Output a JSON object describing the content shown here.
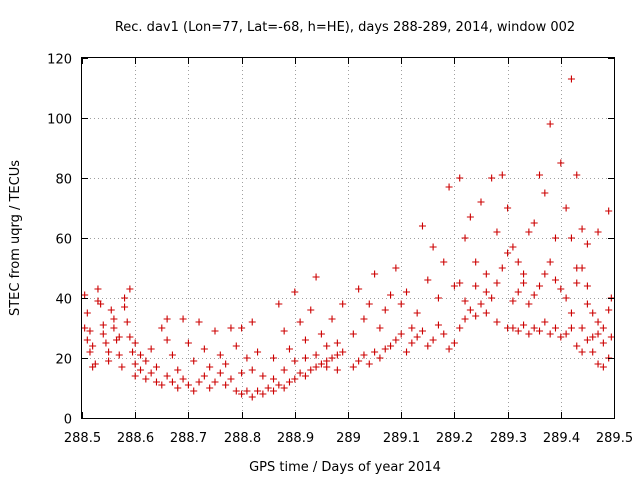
{
  "chart_data": {
    "type": "scatter",
    "title": "Rec. dav1 (Lon=77, Lat=-68, h=HE), days 288-289, 2014, window 002",
    "xlabel": "GPS time / Days of year 2014",
    "ylabel": "STEC from uqrg / TECUs",
    "xlim": [
      288.5,
      289.5
    ],
    "ylim": [
      0,
      120
    ],
    "xticks": [
      288.5,
      288.6,
      288.7,
      288.8,
      288.9,
      289,
      289.1,
      289.2,
      289.3,
      289.4,
      289.5
    ],
    "xtick_labels": [
      "288.5",
      "288.6",
      "288.7",
      "288.8",
      "288.9",
      "289",
      "289.1",
      "289.2",
      "289.3",
      "289.4",
      "289.5"
    ],
    "yticks": [
      0,
      20,
      40,
      60,
      80,
      100,
      120
    ],
    "ytick_labels": [
      "0",
      "20",
      "40",
      "60",
      "80",
      "100",
      "120"
    ],
    "grid": true,
    "marker": "plus",
    "color": "#cc0000",
    "series": [
      {
        "name": "STEC",
        "points": [
          [
            288.505,
            41
          ],
          [
            288.51,
            35
          ],
          [
            288.515,
            29
          ],
          [
            288.52,
            24
          ],
          [
            288.525,
            18
          ],
          [
            288.53,
            43
          ],
          [
            288.535,
            38
          ],
          [
            288.54,
            31
          ],
          [
            288.545,
            25
          ],
          [
            288.55,
            19
          ],
          [
            288.555,
            36
          ],
          [
            288.56,
            30
          ],
          [
            288.565,
            26
          ],
          [
            288.57,
            21
          ],
          [
            288.575,
            17
          ],
          [
            288.58,
            37
          ],
          [
            288.585,
            32
          ],
          [
            288.59,
            27
          ],
          [
            288.595,
            22
          ],
          [
            288.6,
            18
          ],
          [
            288.505,
            30
          ],
          [
            288.51,
            26
          ],
          [
            288.515,
            22
          ],
          [
            288.52,
            17
          ],
          [
            288.53,
            39
          ],
          [
            288.54,
            28
          ],
          [
            288.55,
            22
          ],
          [
            288.56,
            33
          ],
          [
            288.57,
            27
          ],
          [
            288.58,
            40
          ],
          [
            288.59,
            43
          ],
          [
            288.6,
            25
          ],
          [
            288.61,
            21
          ],
          [
            288.62,
            19
          ],
          [
            288.63,
            23
          ],
          [
            288.64,
            17
          ],
          [
            288.65,
            30
          ],
          [
            288.66,
            26
          ],
          [
            288.67,
            21
          ],
          [
            288.68,
            16
          ],
          [
            288.6,
            14
          ],
          [
            288.61,
            16
          ],
          [
            288.62,
            13
          ],
          [
            288.63,
            15
          ],
          [
            288.64,
            12
          ],
          [
            288.65,
            11
          ],
          [
            288.66,
            14
          ],
          [
            288.67,
            12
          ],
          [
            288.68,
            10
          ],
          [
            288.69,
            13
          ],
          [
            288.7,
            11
          ],
          [
            288.71,
            9
          ],
          [
            288.72,
            12
          ],
          [
            288.73,
            14
          ],
          [
            288.74,
            10
          ],
          [
            288.75,
            12
          ],
          [
            288.76,
            15
          ],
          [
            288.77,
            11
          ],
          [
            288.78,
            13
          ],
          [
            288.79,
            9
          ],
          [
            288.66,
            33
          ],
          [
            288.69,
            33
          ],
          [
            288.72,
            32
          ],
          [
            288.75,
            29
          ],
          [
            288.78,
            30
          ],
          [
            288.8,
            30
          ],
          [
            288.82,
            32
          ],
          [
            288.7,
            25
          ],
          [
            288.73,
            23
          ],
          [
            288.76,
            21
          ],
          [
            288.79,
            24
          ],
          [
            288.81,
            20
          ],
          [
            288.83,
            22
          ],
          [
            288.71,
            19
          ],
          [
            288.74,
            17
          ],
          [
            288.77,
            18
          ],
          [
            288.8,
            15
          ],
          [
            288.82,
            16
          ],
          [
            288.84,
            14
          ],
          [
            288.86,
            13
          ],
          [
            288.8,
            8
          ],
          [
            288.81,
            9
          ],
          [
            288.82,
            7
          ],
          [
            288.83,
            9
          ],
          [
            288.84,
            8
          ],
          [
            288.85,
            10
          ],
          [
            288.86,
            9
          ],
          [
            288.87,
            11
          ],
          [
            288.88,
            10
          ],
          [
            288.89,
            12
          ],
          [
            288.9,
            13
          ],
          [
            288.91,
            15
          ],
          [
            288.92,
            14
          ],
          [
            288.93,
            16
          ],
          [
            288.94,
            17
          ],
          [
            288.95,
            18
          ],
          [
            288.96,
            19
          ],
          [
            288.97,
            20
          ],
          [
            288.98,
            21
          ],
          [
            288.99,
            22
          ],
          [
            288.87,
            38
          ],
          [
            288.88,
            29
          ],
          [
            288.89,
            23
          ],
          [
            288.9,
            42
          ],
          [
            288.91,
            32
          ],
          [
            288.92,
            26
          ],
          [
            288.93,
            36
          ],
          [
            288.94,
            47
          ],
          [
            288.95,
            28
          ],
          [
            288.96,
            24
          ],
          [
            288.97,
            33
          ],
          [
            288.98,
            25
          ],
          [
            288.99,
            38
          ],
          [
            288.9,
            19
          ],
          [
            288.92,
            20
          ],
          [
            288.94,
            21
          ],
          [
            288.96,
            17
          ],
          [
            288.98,
            16
          ],
          [
            288.88,
            16
          ],
          [
            288.86,
            20
          ],
          [
            289.01,
            17
          ],
          [
            289.02,
            19
          ],
          [
            289.03,
            21
          ],
          [
            289.04,
            18
          ],
          [
            289.05,
            22
          ],
          [
            289.06,
            20
          ],
          [
            289.07,
            23
          ],
          [
            289.08,
            24
          ],
          [
            289.09,
            26
          ],
          [
            289.1,
            28
          ],
          [
            289.01,
            28
          ],
          [
            289.02,
            43
          ],
          [
            289.03,
            33
          ],
          [
            289.04,
            38
          ],
          [
            289.05,
            48
          ],
          [
            289.06,
            30
          ],
          [
            289.07,
            36
          ],
          [
            289.08,
            41
          ],
          [
            289.09,
            50
          ],
          [
            289.1,
            38
          ],
          [
            289.11,
            42
          ],
          [
            289.12,
            30
          ],
          [
            289.13,
            35
          ],
          [
            289.14,
            64
          ],
          [
            289.15,
            46
          ],
          [
            289.16,
            57
          ],
          [
            289.17,
            40
          ],
          [
            289.18,
            52
          ],
          [
            289.19,
            77
          ],
          [
            289.2,
            44
          ],
          [
            289.11,
            22
          ],
          [
            289.12,
            25
          ],
          [
            289.13,
            27
          ],
          [
            289.14,
            29
          ],
          [
            289.15,
            24
          ],
          [
            289.16,
            26
          ],
          [
            289.17,
            31
          ],
          [
            289.18,
            28
          ],
          [
            289.19,
            23
          ],
          [
            289.2,
            25
          ],
          [
            289.21,
            80
          ],
          [
            289.22,
            60
          ],
          [
            289.23,
            67
          ],
          [
            289.24,
            52
          ],
          [
            289.25,
            72
          ],
          [
            289.26,
            48
          ],
          [
            289.27,
            80
          ],
          [
            289.28,
            62
          ],
          [
            289.29,
            81
          ],
          [
            289.3,
            70
          ],
          [
            289.21,
            30
          ],
          [
            289.22,
            33
          ],
          [
            289.23,
            36
          ],
          [
            289.24,
            34
          ],
          [
            289.25,
            38
          ],
          [
            289.26,
            42
          ],
          [
            289.27,
            40
          ],
          [
            289.28,
            45
          ],
          [
            289.29,
            50
          ],
          [
            289.3,
            55
          ],
          [
            289.21,
            45
          ],
          [
            289.22,
            39
          ],
          [
            289.24,
            44
          ],
          [
            289.26,
            35
          ],
          [
            289.28,
            32
          ],
          [
            289.3,
            30
          ],
          [
            289.31,
            57
          ],
          [
            289.32,
            52
          ],
          [
            289.33,
            48
          ],
          [
            289.34,
            62
          ],
          [
            289.31,
            39
          ],
          [
            289.32,
            42
          ],
          [
            289.33,
            45
          ],
          [
            289.34,
            38
          ],
          [
            289.35,
            41
          ],
          [
            289.36,
            44
          ],
          [
            289.37,
            48
          ],
          [
            289.38,
            52
          ],
          [
            289.39,
            46
          ],
          [
            289.4,
            43
          ],
          [
            289.31,
            30
          ],
          [
            289.32,
            29
          ],
          [
            289.33,
            31
          ],
          [
            289.34,
            28
          ],
          [
            289.35,
            30
          ],
          [
            289.36,
            29
          ],
          [
            289.37,
            32
          ],
          [
            289.38,
            28
          ],
          [
            289.39,
            30
          ],
          [
            289.4,
            27
          ],
          [
            289.35,
            65
          ],
          [
            289.36,
            81
          ],
          [
            289.37,
            75
          ],
          [
            289.38,
            98
          ],
          [
            289.39,
            60
          ],
          [
            289.4,
            85
          ],
          [
            289.41,
            70
          ],
          [
            289.42,
            113
          ],
          [
            289.43,
            81
          ],
          [
            289.44,
            63
          ],
          [
            289.41,
            40
          ],
          [
            289.42,
            35
          ],
          [
            289.43,
            45
          ],
          [
            289.44,
            30
          ],
          [
            289.45,
            38
          ],
          [
            289.46,
            27
          ],
          [
            289.47,
            32
          ],
          [
            289.48,
            25
          ],
          [
            289.49,
            69
          ],
          [
            289.495,
            40
          ],
          [
            289.41,
            28
          ],
          [
            289.42,
            30
          ],
          [
            289.43,
            24
          ],
          [
            289.44,
            22
          ],
          [
            289.45,
            26
          ],
          [
            289.46,
            22
          ],
          [
            289.47,
            18
          ],
          [
            289.48,
            17
          ],
          [
            289.49,
            20
          ],
          [
            289.495,
            27
          ],
          [
            289.43,
            50
          ],
          [
            289.45,
            58
          ],
          [
            289.47,
            62
          ],
          [
            289.44,
            50
          ],
          [
            289.46,
            35
          ],
          [
            289.48,
            30
          ],
          [
            289.42,
            60
          ],
          [
            289.45,
            44
          ],
          [
            289.47,
            28
          ],
          [
            289.49,
            36
          ]
        ]
      }
    ]
  }
}
